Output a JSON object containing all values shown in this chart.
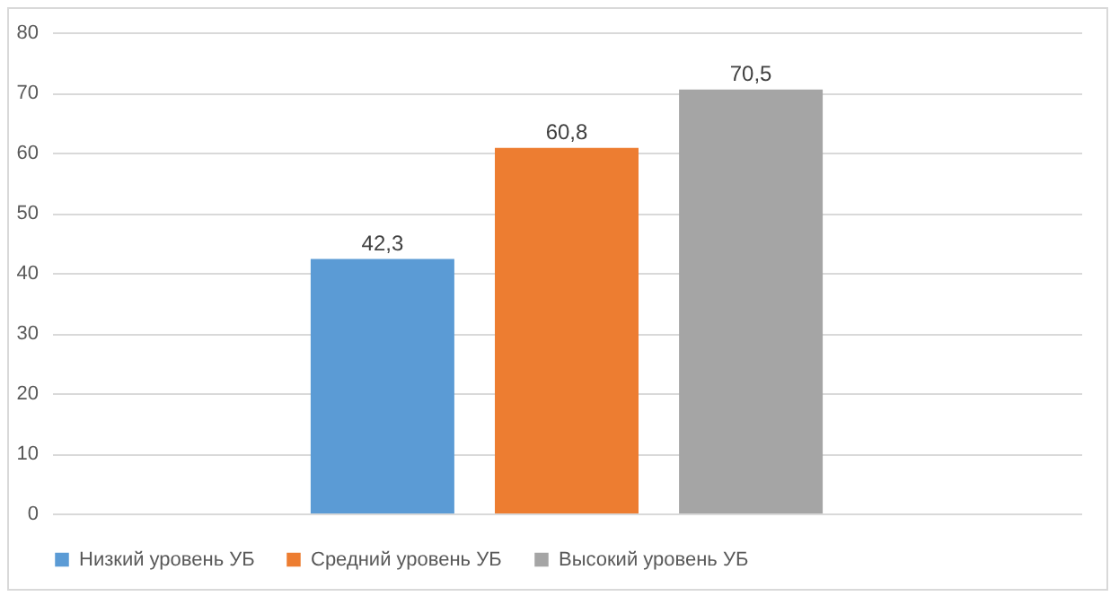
{
  "chart_data": {
    "type": "bar",
    "categories": [
      null
    ],
    "series": [
      {
        "name": "Низкий уровень УБ",
        "color": "#5b9bd5",
        "values": [
          42.3
        ],
        "value_labels": [
          "42,3"
        ]
      },
      {
        "name": "Средний уровень УБ",
        "color": "#ed7d31",
        "values": [
          60.8
        ],
        "value_labels": [
          "60,8"
        ]
      },
      {
        "name": "Высокий уровень УБ",
        "color": "#a5a5a5",
        "values": [
          70.5
        ],
        "value_labels": [
          "70,5"
        ]
      }
    ],
    "ylim": [
      0,
      80
    ],
    "yticks": [
      0,
      10,
      20,
      30,
      40,
      50,
      60,
      70,
      80
    ],
    "grid": "y",
    "legend": "bottom"
  }
}
